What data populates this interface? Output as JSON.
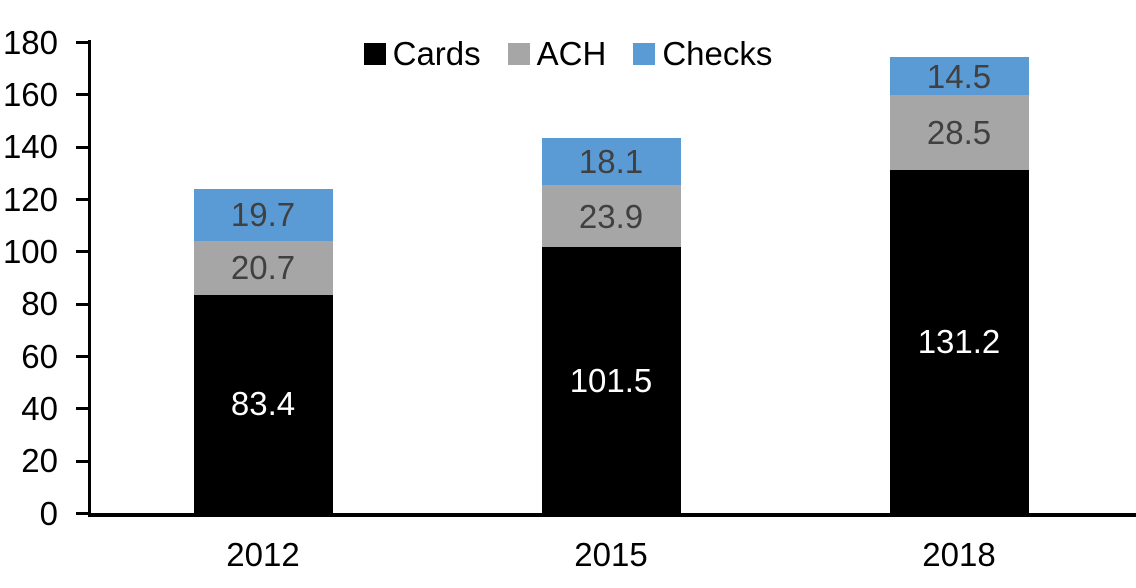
{
  "chart_data": {
    "type": "bar",
    "stacked": true,
    "title": "",
    "xlabel": "",
    "ylabel": "",
    "categories": [
      "2012",
      "2015",
      "2018"
    ],
    "series": [
      {
        "name": "Cards",
        "color": "#000000",
        "label_color": "#ffffff",
        "values": [
          83.4,
          101.5,
          131.2
        ]
      },
      {
        "name": "ACH",
        "color": "#a6a6a6",
        "label_color": "#404040",
        "values": [
          20.7,
          23.9,
          28.5
        ]
      },
      {
        "name": "Checks",
        "color": "#5b9bd5",
        "label_color": "#404040",
        "values": [
          19.7,
          18.1,
          14.5
        ]
      }
    ],
    "totals": [
      123.8,
      143.5,
      174.2
    ],
    "ylim": [
      0,
      180
    ],
    "yticks": [
      0,
      20,
      40,
      60,
      80,
      100,
      120,
      140,
      160,
      180
    ],
    "grid": false,
    "legend_position": "top-center",
    "axis_color": "#000000",
    "background_color": "#ffffff",
    "value_label_decimals": 1
  }
}
